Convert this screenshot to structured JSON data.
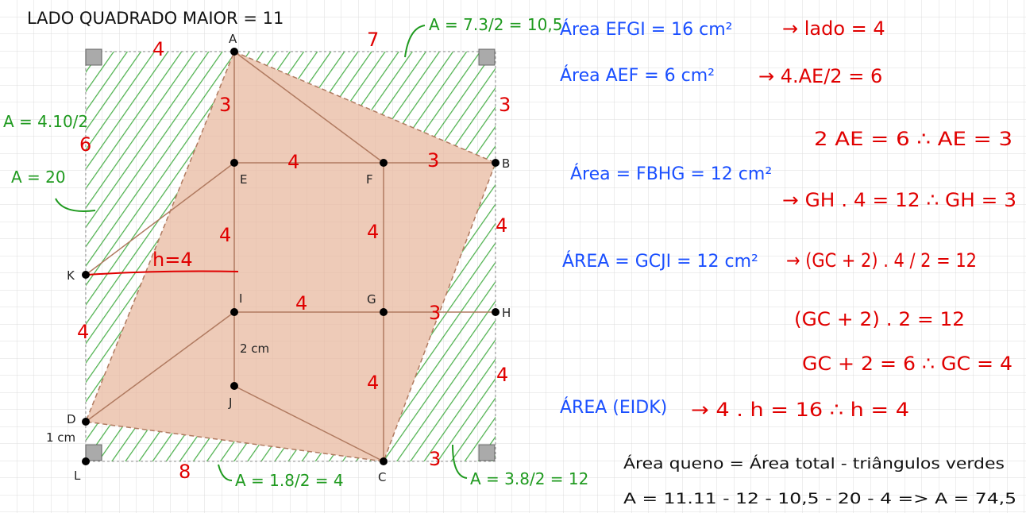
{
  "title": "LADO QUADRADO MAIOR = 11",
  "points": [
    "A",
    "B",
    "C",
    "D",
    "E",
    "F",
    "G",
    "H",
    "I",
    "J",
    "K",
    "L"
  ],
  "measures": [
    "2 cm",
    "1 cm"
  ],
  "segment_labels": [
    "4",
    "7",
    "3",
    "6",
    "3",
    "4",
    "3",
    "4",
    "4",
    "4",
    "h=4",
    "4",
    "3",
    "4",
    "4",
    "4",
    "8",
    "3"
  ],
  "green_notes": [
    "A = 7.3/2 = 10,5",
    "A = 4.10/2",
    "A = 20",
    "A = 1.8/2 = 4",
    "A = 3.8/2 = 12"
  ],
  "blue_lines": [
    "Área EFGI = 16 cm²",
    "Área AEF = 6 cm²",
    "Área = FBHG = 12 cm²",
    "ÁREA = GCJI = 12 cm²",
    "ÁREA (EIDK)"
  ],
  "red_lines": [
    "→ lado = 4",
    "→ 4.AE/2 = 6",
    "2 AE = 6 ∴ AE = 3",
    "→ GH . 4 = 12 ∴ GH = 3",
    "→ (GC + 2) . 4 / 2 = 12",
    "(GC + 2) . 2 = 12",
    "GC + 2 = 6 ∴ GC = 4",
    "→ 4 . h = 16 ∴ h = 4"
  ],
  "black_lines": [
    "Área queno = Área total - triângulos verdes",
    "A = 11.11 - 12 - 10,5 - 20 - 4 => A = 74,5"
  ]
}
